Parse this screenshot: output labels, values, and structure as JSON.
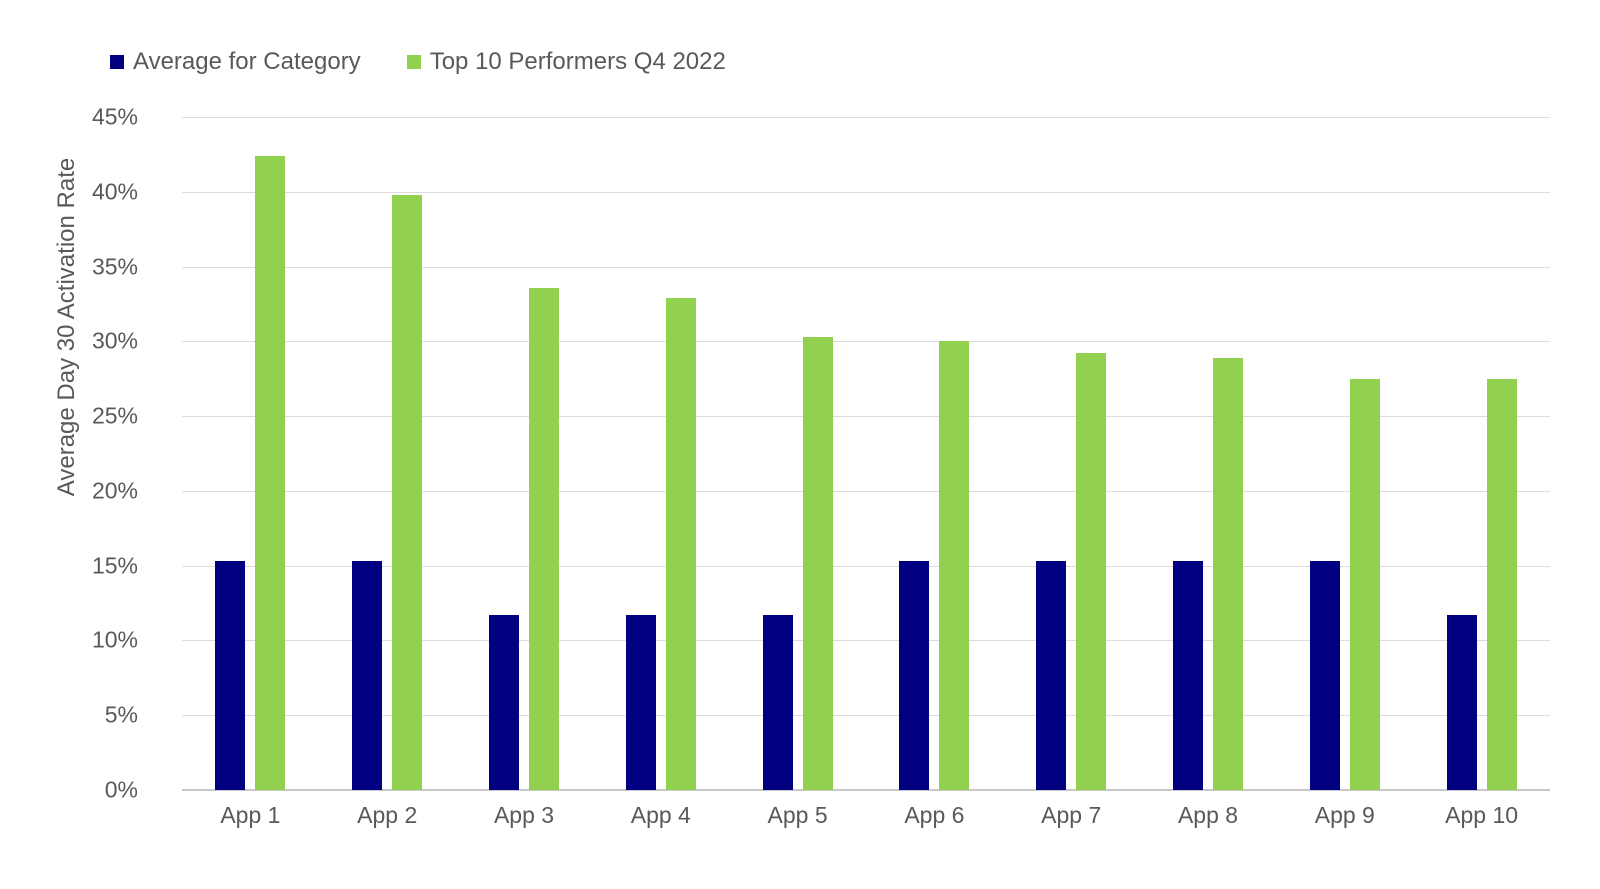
{
  "chart_data": {
    "type": "bar",
    "categories": [
      "App 1",
      "App 2",
      "App 3",
      "App 4",
      "App 5",
      "App 6",
      "App 7",
      "App 8",
      "App 9",
      "App 10"
    ],
    "series": [
      {
        "name": "Average for Category",
        "color": "#000080",
        "values": [
          15.3,
          15.3,
          11.7,
          11.7,
          11.7,
          15.3,
          15.3,
          15.3,
          15.3,
          11.7
        ]
      },
      {
        "name": "Top 10 Performers Q4 2022",
        "color": "#92D050",
        "values": [
          42.4,
          39.8,
          33.6,
          32.9,
          30.3,
          30.0,
          29.2,
          28.9,
          27.5,
          27.5
        ]
      }
    ],
    "title": "",
    "xlabel": "",
    "ylabel": "Average Day 30 Activation Rate",
    "ylim": [
      0,
      45
    ],
    "ytick_step": 5,
    "ytick_format": "percent",
    "grid": true,
    "legend_position": "top-left",
    "colors": {
      "grid": "#DCDCDC",
      "axis": "#C8C8C8",
      "text": "#595959"
    }
  }
}
